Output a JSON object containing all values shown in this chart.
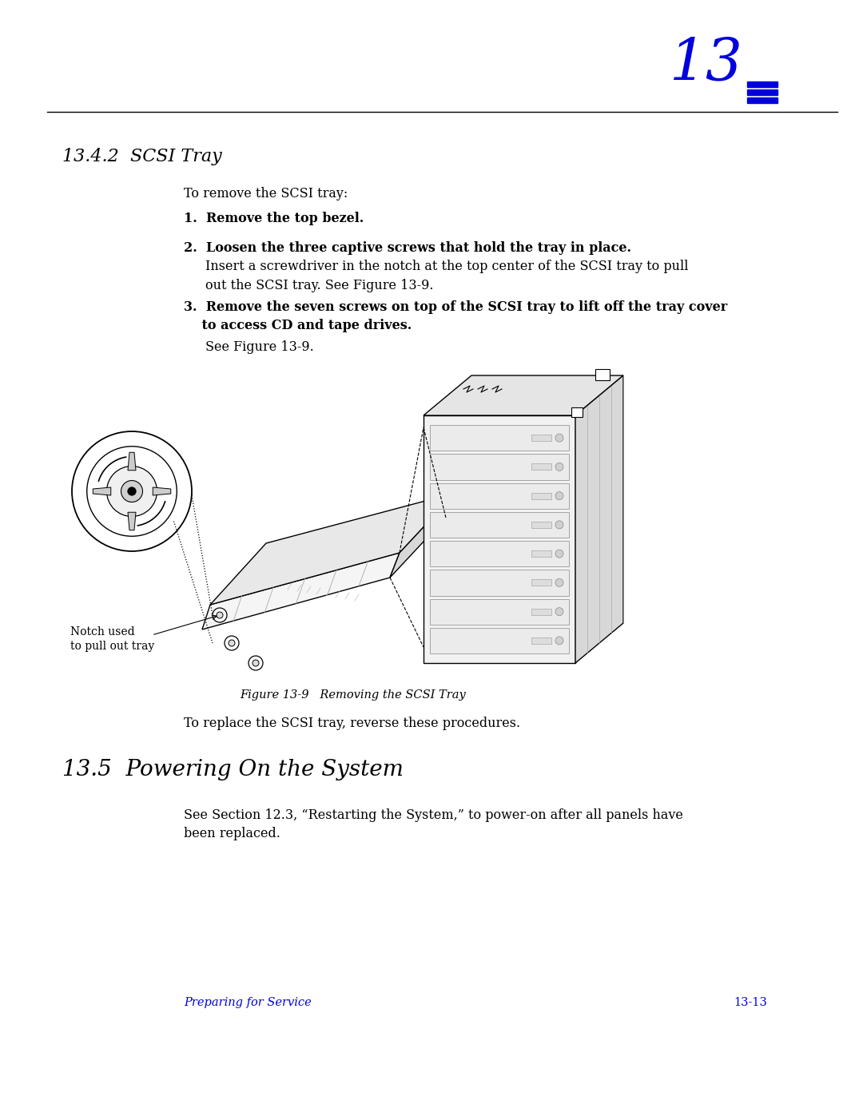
{
  "bg_color": "#ffffff",
  "text_color": "#000000",
  "blue_color": "#0000dd",
  "header_number": "13",
  "section_title": "13.4.2  SCSI Tray",
  "section_title_fontsize": 16,
  "intro_text": "To remove the SCSI tray:",
  "step1_bold": "1.  Remove the top bezel.",
  "step2_bold": "2.  Loosen the three captive screws that hold the tray in place.",
  "step2_body": "Insert a screwdriver in the notch at the top center of the SCSI tray to pull\nout the SCSI tray. See Figure 13-9.",
  "step3_bold": "3.  Remove the seven screws on top of the SCSI tray to lift off the tray cover\n    to access CD and tape drives.",
  "step3_body": "See Figure 13-9.",
  "figure_caption": "Figure 13-9   Removing the SCSI Tray",
  "notch_label": "Notch used\nto pull out tray",
  "replace_text": "To replace the SCSI tray, reverse these procedures.",
  "section2_title": "13.5  Powering On the System",
  "section2_title_fontsize": 20,
  "section2_body": "See Section 12.3, “Restarting the System,” to power-on after all panels have\nbeen replaced.",
  "footer_left": "Preparing for Service",
  "footer_right": "13-13"
}
